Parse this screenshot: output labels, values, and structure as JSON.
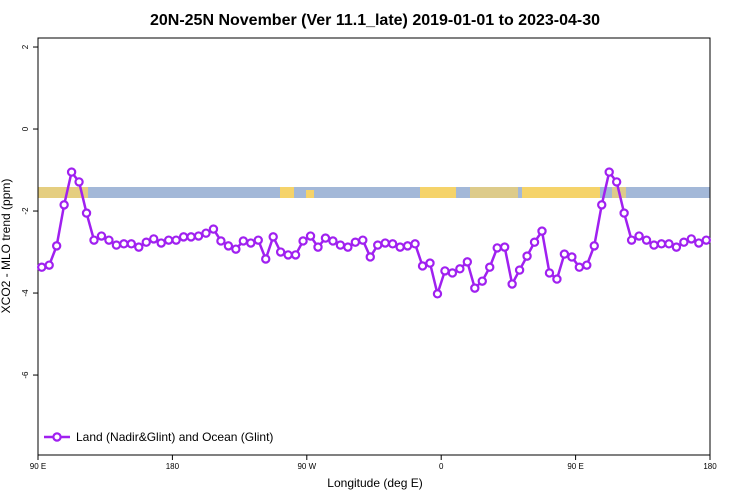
{
  "chart_data": {
    "type": "line",
    "title": "20N-25N November (Ver 11.1_late)   2019-01-01 to 2023-04-30",
    "xlabel": "Longitude (deg E)",
    "ylabel": "XCO2 - MLO trend (ppm)",
    "x": [
      92.5,
      97.5,
      102.5,
      107.5,
      112.5,
      117.5,
      122.5,
      127.5,
      132.5,
      137.5,
      142.5,
      147.5,
      152.5,
      157.5,
      162.5,
      167.5,
      172.5,
      177.5,
      182.5,
      187.5,
      192.5,
      197.5,
      202.5,
      207.5,
      212.5,
      217.5,
      222.5,
      227.5,
      232.5,
      237.5,
      242.5,
      247.5,
      252.5,
      257.5,
      262.5,
      267.5,
      272.5,
      277.5,
      282.5,
      287.5,
      292.5,
      297.5,
      302.5,
      307.5,
      312.5,
      317.5,
      322.5,
      327.5,
      332.5,
      337.5,
      342.5,
      347.5,
      352.5,
      357.5,
      362.5,
      367.5,
      372.5,
      377.5,
      382.5,
      387.5,
      392.5,
      397.5,
      402.5,
      407.5,
      412.5,
      417.5,
      422.5,
      427.5,
      432.5,
      437.5,
      442.5,
      447.5,
      452.5,
      457.5,
      462.5,
      467.5,
      472.5,
      477.5,
      482.5,
      487.5,
      492.5,
      497.5,
      502.5,
      507.5,
      512.5,
      517.5,
      522.5,
      527.5,
      532.5,
      537.5
    ],
    "series": [
      {
        "name": "Land (Nadir&Glint) and Ocean (Glint)",
        "color": "#a020f0",
        "values": [
          -3.37,
          -3.32,
          -2.85,
          -1.85,
          -1.05,
          -1.29,
          -2.05,
          -2.71,
          -2.61,
          -2.71,
          -2.83,
          -2.8,
          -2.8,
          -2.88,
          -2.76,
          -2.68,
          -2.78,
          -2.71,
          -2.71,
          -2.63,
          -2.63,
          -2.61,
          -2.54,
          -2.44,
          -2.73,
          -2.85,
          -2.93,
          -2.73,
          -2.78,
          -2.71,
          -3.17,
          -2.63,
          -3.0,
          -3.07,
          -3.07,
          -2.73,
          -2.61,
          -2.88,
          -2.66,
          -2.73,
          -2.83,
          -2.88,
          -2.76,
          -2.71,
          -3.12,
          -2.83,
          -2.78,
          -2.8,
          -2.88,
          -2.85,
          -2.8,
          -3.34,
          -3.27,
          -4.02,
          -3.46,
          -3.51,
          -3.41,
          -3.24,
          -3.88,
          -3.71,
          -3.37,
          -2.9,
          -2.88,
          -3.78,
          -3.44,
          -3.1,
          -2.76,
          -2.49,
          -3.51,
          -3.66,
          -3.05,
          -3.12,
          -3.37,
          -3.32,
          -2.85,
          -1.85,
          -1.05,
          -1.29,
          -2.05,
          -2.71,
          -2.61,
          -2.71,
          -2.83,
          -2.8,
          -2.8,
          -2.88,
          -2.76,
          -2.68,
          -2.78,
          -2.71
        ]
      }
    ],
    "xlim": [
      90,
      540
    ],
    "xticks": [
      {
        "value": 90,
        "label": "90 E"
      },
      180,
      {
        "value": 270,
        "label": "90 W"
      },
      {
        "value": 360,
        "label": "0"
      },
      {
        "value": 450,
        "label": "90 E"
      },
      180
    ],
    "ylim": [
      -7.95,
      2.22
    ],
    "yticks": [
      2,
      0,
      -2,
      -4,
      -6
    ],
    "legend": "bottom-left"
  }
}
